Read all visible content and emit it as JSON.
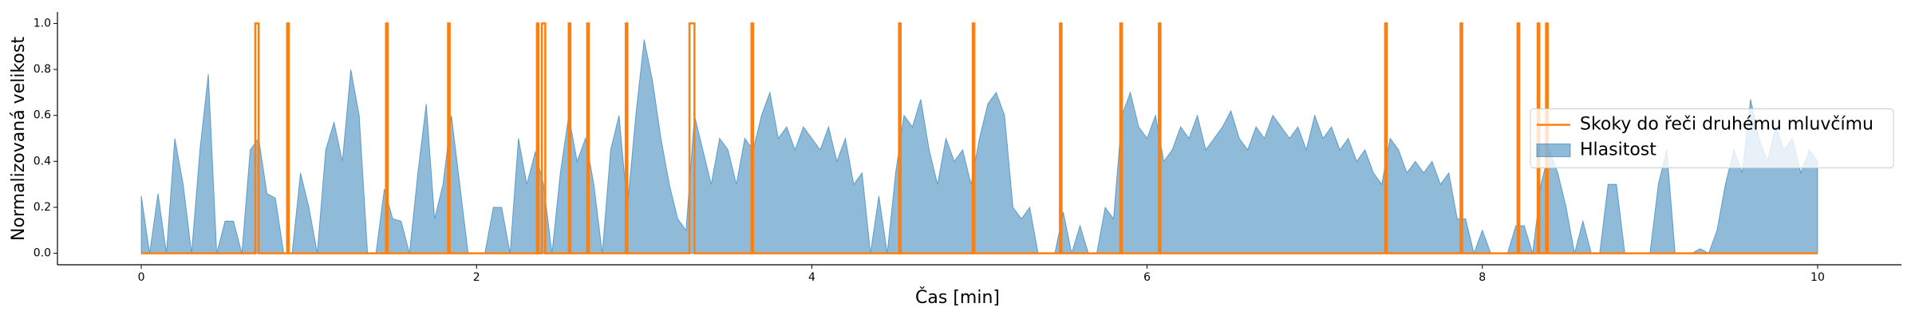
{
  "chart_data": {
    "type": "line",
    "xlabel": "Čas [min]",
    "ylabel": "Normalizovaná velikost",
    "xlim": [
      -0.5,
      10.5
    ],
    "xticks": [
      0,
      2,
      4,
      6,
      8,
      10
    ],
    "ylim": [
      -0.05,
      1.05
    ],
    "yticks": [
      {
        "value": 0,
        "label": "0.0"
      },
      {
        "value": 0.2,
        "label": "0.2"
      },
      {
        "value": 0.4,
        "label": "0.4"
      },
      {
        "value": 0.6,
        "label": "0.6"
      },
      {
        "value": 0.8,
        "label": "0.8"
      },
      {
        "value": 1,
        "label": "1.0"
      }
    ],
    "legend": "right",
    "grid": false,
    "series": [
      {
        "name": "Skoky do řeči druhému mluvčímu",
        "type": "step",
        "color": "#ff7f0e",
        "x": [
          0,
          0.68,
          0.68,
          0.7,
          0.7,
          0.87,
          0.87,
          0.88,
          0.88,
          1.46,
          1.46,
          1.47,
          1.47,
          1.83,
          1.83,
          1.84,
          1.84,
          2.36,
          2.36,
          2.37,
          2.37,
          2.39,
          2.39,
          2.41,
          2.41,
          2.55,
          2.55,
          2.56,
          2.56,
          2.66,
          2.66,
          2.67,
          2.67,
          2.89,
          2.89,
          2.9,
          2.9,
          3.27,
          3.27,
          3.3,
          3.3,
          3.64,
          3.64,
          3.65,
          3.65,
          4.52,
          4.52,
          4.53,
          4.53,
          4.96,
          4.96,
          4.97,
          4.97,
          5.48,
          5.48,
          5.49,
          5.49,
          5.84,
          5.84,
          5.85,
          5.85,
          6.07,
          6.07,
          6.08,
          6.08,
          7.42,
          7.42,
          7.43,
          7.43,
          7.87,
          7.87,
          7.88,
          7.88,
          8.21,
          8.21,
          8.22,
          8.22,
          8.33,
          8.33,
          8.34,
          8.34,
          8.38,
          8.38,
          8.39,
          8.39,
          10
        ],
        "values": [
          0,
          0,
          1,
          1,
          0,
          0,
          1,
          1,
          0,
          0,
          1,
          1,
          0,
          0,
          1,
          1,
          0,
          0,
          1,
          1,
          0,
          0,
          1,
          1,
          0,
          0,
          1,
          1,
          0,
          0,
          1,
          1,
          0,
          0,
          1,
          1,
          0,
          0,
          1,
          1,
          0,
          0,
          1,
          1,
          0,
          0,
          1,
          1,
          0,
          0,
          1,
          1,
          0,
          0,
          1,
          1,
          0,
          0,
          1,
          1,
          0,
          0,
          1,
          1,
          0,
          0,
          1,
          1,
          0,
          0,
          1,
          1,
          0,
          0,
          1,
          1,
          0,
          0,
          1,
          1,
          0,
          0,
          1,
          1,
          0,
          0
        ]
      },
      {
        "name": "Hlasitost",
        "type": "area",
        "color": "#1f77b4",
        "x": [
          0,
          0.05,
          0.1,
          0.15,
          0.2,
          0.25,
          0.3,
          0.35,
          0.4,
          0.45,
          0.5,
          0.55,
          0.6,
          0.65,
          0.7,
          0.75,
          0.8,
          0.85,
          0.9,
          0.95,
          1,
          1.05,
          1.1,
          1.15,
          1.2,
          1.25,
          1.3,
          1.35,
          1.4,
          1.45,
          1.5,
          1.55,
          1.6,
          1.65,
          1.7,
          1.75,
          1.8,
          1.85,
          1.9,
          1.95,
          2,
          2.05,
          2.1,
          2.15,
          2.2,
          2.25,
          2.3,
          2.35,
          2.4,
          2.45,
          2.5,
          2.55,
          2.6,
          2.65,
          2.7,
          2.75,
          2.8,
          2.85,
          2.9,
          2.95,
          3,
          3.05,
          3.1,
          3.15,
          3.2,
          3.25,
          3.3,
          3.35,
          3.4,
          3.45,
          3.5,
          3.55,
          3.6,
          3.65,
          3.7,
          3.75,
          3.8,
          3.85,
          3.9,
          3.95,
          4,
          4.05,
          4.1,
          4.15,
          4.2,
          4.25,
          4.3,
          4.35,
          4.4,
          4.45,
          4.5,
          4.55,
          4.6,
          4.65,
          4.7,
          4.75,
          4.8,
          4.85,
          4.9,
          4.95,
          5,
          5.05,
          5.1,
          5.15,
          5.2,
          5.25,
          5.3,
          5.35,
          5.4,
          5.45,
          5.5,
          5.55,
          5.6,
          5.65,
          5.7,
          5.75,
          5.8,
          5.85,
          5.9,
          5.95,
          6,
          6.05,
          6.1,
          6.15,
          6.2,
          6.25,
          6.3,
          6.35,
          6.4,
          6.45,
          6.5,
          6.55,
          6.6,
          6.65,
          6.7,
          6.75,
          6.8,
          6.85,
          6.9,
          6.95,
          7,
          7.05,
          7.1,
          7.15,
          7.2,
          7.25,
          7.3,
          7.35,
          7.4,
          7.45,
          7.5,
          7.55,
          7.6,
          7.65,
          7.7,
          7.75,
          7.8,
          7.85,
          7.9,
          7.95,
          8,
          8.05,
          8.1,
          8.15,
          8.2,
          8.25,
          8.3,
          8.35,
          8.4,
          8.45,
          8.5,
          8.55,
          8.6,
          8.65,
          8.7,
          8.75,
          8.8,
          8.85,
          8.9,
          8.95,
          9,
          9.05,
          9.1,
          9.15,
          9.2,
          9.25,
          9.3,
          9.35,
          9.4,
          9.45,
          9.5,
          9.55,
          9.6,
          9.65,
          9.7,
          9.75,
          9.8,
          9.85,
          9.9,
          9.95,
          10
        ],
        "values": [
          0.25,
          0,
          0.26,
          0,
          0.5,
          0.3,
          0,
          0.45,
          0.78,
          0,
          0.14,
          0.14,
          0,
          0.45,
          0.5,
          0.26,
          0.24,
          0,
          0,
          0.35,
          0.2,
          0,
          0.45,
          0.57,
          0.4,
          0.8,
          0.6,
          0,
          0,
          0.28,
          0.15,
          0.14,
          0,
          0.35,
          0.65,
          0.15,
          0.3,
          0.6,
          0.3,
          0,
          0,
          0,
          0.2,
          0.2,
          0,
          0.5,
          0.3,
          0.44,
          0.3,
          0,
          0.35,
          0.6,
          0.4,
          0.5,
          0.3,
          0,
          0.45,
          0.6,
          0.2,
          0.6,
          0.93,
          0.75,
          0.5,
          0.3,
          0.15,
          0.1,
          0.6,
          0.45,
          0.3,
          0.5,
          0.45,
          0.3,
          0.5,
          0.45,
          0.6,
          0.7,
          0.5,
          0.55,
          0.45,
          0.55,
          0.5,
          0.45,
          0.55,
          0.4,
          0.5,
          0.3,
          0.35,
          0,
          0.25,
          0,
          0.35,
          0.6,
          0.55,
          0.67,
          0.45,
          0.3,
          0.5,
          0.4,
          0.45,
          0.3,
          0.5,
          0.65,
          0.7,
          0.6,
          0.2,
          0.15,
          0.2,
          0,
          0,
          0,
          0.18,
          0,
          0.12,
          0,
          0,
          0.2,
          0.15,
          0.6,
          0.7,
          0.55,
          0.5,
          0.6,
          0.4,
          0.45,
          0.55,
          0.5,
          0.6,
          0.45,
          0.5,
          0.55,
          0.62,
          0.5,
          0.45,
          0.55,
          0.5,
          0.6,
          0.55,
          0.5,
          0.55,
          0.45,
          0.6,
          0.5,
          0.55,
          0.45,
          0.5,
          0.4,
          0.45,
          0.35,
          0.3,
          0.5,
          0.45,
          0.35,
          0.4,
          0.35,
          0.4,
          0.3,
          0.35,
          0.15,
          0.15,
          0,
          0.1,
          0,
          0,
          0,
          0.12,
          0.12,
          0,
          0.3,
          0.45,
          0.35,
          0.2,
          0,
          0.14,
          0,
          0,
          0.3,
          0.3,
          0,
          0,
          0,
          0,
          0.3,
          0.45,
          0,
          0,
          0,
          0.02,
          0,
          0.1,
          0.3,
          0.45,
          0.35,
          0.67,
          0.5,
          0.4,
          0.55,
          0.45,
          0.5,
          0.35,
          0.45,
          0.4
        ]
      }
    ]
  }
}
